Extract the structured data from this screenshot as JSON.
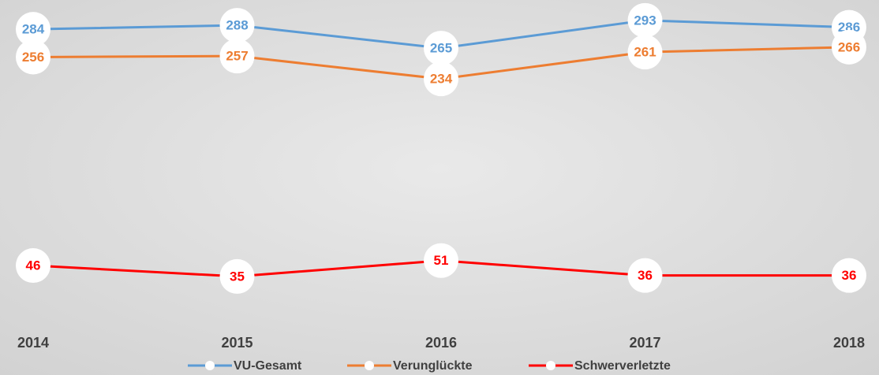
{
  "chart_data": {
    "type": "line",
    "categories": [
      "2014",
      "2015",
      "2016",
      "2017",
      "2018"
    ],
    "series": [
      {
        "name": "VU-Gesamt",
        "color": "#5b9bd5",
        "values": [
          284,
          288,
          265,
          293,
          286
        ]
      },
      {
        "name": "Verunglückte",
        "color": "#ed7d31",
        "values": [
          256,
          257,
          234,
          261,
          266
        ]
      },
      {
        "name": "Schwerverletzte",
        "color": "#ff0000",
        "values": [
          46,
          35,
          51,
          36,
          36
        ]
      }
    ],
    "ylim": [
      0,
      300
    ]
  }
}
